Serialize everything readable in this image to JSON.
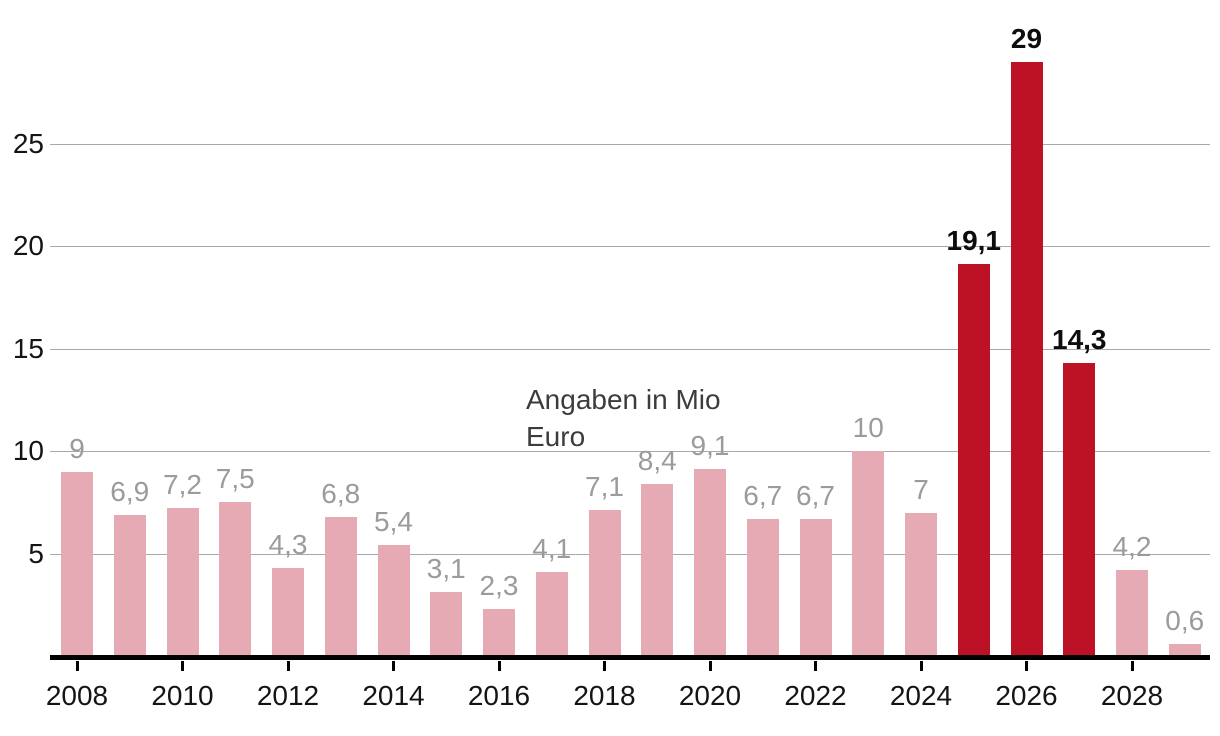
{
  "chart_data": {
    "type": "bar",
    "title": "",
    "annotation": {
      "line1": "Angaben in Mio",
      "line2": "Euro"
    },
    "categories": [
      2008,
      2009,
      2010,
      2011,
      2012,
      2013,
      2014,
      2015,
      2016,
      2017,
      2018,
      2019,
      2020,
      2021,
      2022,
      2023,
      2024,
      2025,
      2026,
      2027,
      2028,
      2029
    ],
    "values": [
      9,
      6.9,
      7.2,
      7.5,
      4.3,
      6.8,
      5.4,
      3.1,
      2.3,
      4.1,
      7.1,
      8.4,
      9.1,
      6.7,
      6.7,
      10,
      7,
      19.1,
      29,
      14.3,
      4.2,
      0.6
    ],
    "value_labels": [
      "9",
      "6,9",
      "7,2",
      "7,5",
      "4,3",
      "6,8",
      "5,4",
      "3,1",
      "2,3",
      "4,1",
      "7,1",
      "8,4",
      "9,1",
      "6,7",
      "6,7",
      "10",
      "7",
      "19,1",
      "29",
      "14,3",
      "4,2",
      "0,6"
    ],
    "highlighted_years": [
      2025,
      2026,
      2027
    ],
    "y_ticks": [
      5,
      10,
      15,
      20,
      25
    ],
    "x_ticks": [
      2008,
      2010,
      2012,
      2014,
      2016,
      2018,
      2020,
      2022,
      2024,
      2026,
      2028
    ],
    "ylim": [
      0,
      30
    ],
    "xlabel": "",
    "ylabel": "",
    "unit": "Mio Euro",
    "grid": "horizontal",
    "legend": "none",
    "colors": {
      "bar": "#e6aab5",
      "bar_highlight": "#bd1126",
      "value_label": "#9b9b9b",
      "value_label_highlight": "#0d0d0d",
      "gridline": "#a9a9a9",
      "axis_line": "#000000",
      "axis_text": "#141414",
      "annotation_text": "#3c3c3c"
    }
  }
}
